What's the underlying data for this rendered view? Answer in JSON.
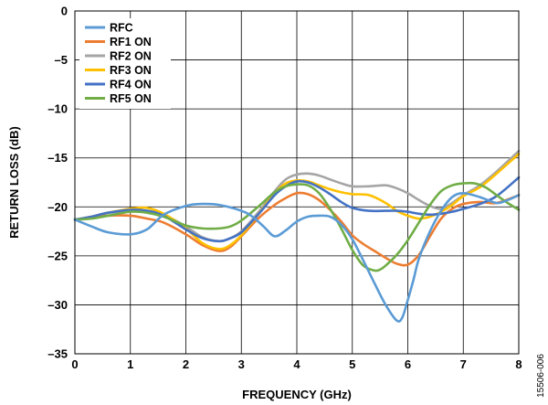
{
  "chart_data": {
    "type": "line",
    "xlabel": "FREQUENCY (GHz)",
    "ylabel": "RETURN LOSS (dB)",
    "xlim": [
      0,
      8
    ],
    "ylim": [
      -35,
      0
    ],
    "xticks": [
      0,
      1,
      2,
      3,
      4,
      5,
      6,
      7,
      8
    ],
    "yticks": [
      0,
      -5,
      -10,
      -15,
      -20,
      -25,
      -30,
      -35
    ],
    "xtick_labels": [
      "0",
      "1",
      "2",
      "3",
      "4",
      "5",
      "6",
      "7",
      "8"
    ],
    "ytick_labels": [
      "0",
      "–5",
      "–10",
      "–15",
      "–20",
      "–25",
      "–30",
      "–35"
    ],
    "grid": true,
    "legend_position": "top-left",
    "figure_id": "15506-006",
    "series": [
      {
        "name": "RFC",
        "color": "#5b9bd5",
        "x": [
          0,
          0.3,
          0.6,
          1.0,
          1.3,
          1.6,
          2.0,
          2.3,
          2.6,
          3.0,
          3.2,
          3.4,
          3.6,
          3.8,
          4.0,
          4.2,
          4.4,
          4.6,
          4.8,
          5.0,
          5.2,
          5.4,
          5.6,
          5.8,
          5.9,
          6.0,
          6.1,
          6.2,
          6.4,
          6.6,
          6.8,
          7.0,
          7.3,
          7.6,
          7.8,
          8.0
        ],
        "y": [
          -21.3,
          -22.0,
          -22.6,
          -22.8,
          -22.3,
          -20.8,
          -19.9,
          -19.7,
          -19.8,
          -20.4,
          -21.0,
          -22.0,
          -23.0,
          -22.4,
          -21.5,
          -21.0,
          -20.9,
          -21.0,
          -21.8,
          -23.3,
          -25.5,
          -27.8,
          -30.0,
          -31.6,
          -31.3,
          -29.5,
          -27.5,
          -25.3,
          -22.5,
          -20.4,
          -19.0,
          -18.6,
          -19.0,
          -19.6,
          -19.3,
          -18.8
        ]
      },
      {
        "name": "RF1 ON",
        "color": "#ed7d31",
        "x": [
          0,
          0.3,
          0.6,
          1.0,
          1.3,
          1.6,
          2.0,
          2.3,
          2.6,
          2.8,
          3.0,
          3.3,
          3.6,
          3.8,
          4.0,
          4.2,
          4.4,
          4.6,
          4.8,
          5.0,
          5.2,
          5.4,
          5.6,
          5.8,
          6.0,
          6.2,
          6.4,
          6.6,
          6.8,
          7.0,
          7.3,
          7.6,
          8.0
        ],
        "y": [
          -21.3,
          -21.1,
          -20.9,
          -20.9,
          -21.2,
          -21.6,
          -22.8,
          -23.9,
          -24.5,
          -24.1,
          -23.0,
          -21.2,
          -19.8,
          -19.1,
          -18.6,
          -18.7,
          -19.3,
          -20.3,
          -21.5,
          -22.9,
          -23.8,
          -24.5,
          -25.2,
          -25.8,
          -25.9,
          -24.9,
          -23.0,
          -21.2,
          -20.2,
          -19.7,
          -19.5,
          -19.6,
          -18.8
        ]
      },
      {
        "name": "RF2 ON",
        "color": "#a5a5a5",
        "x": [
          0,
          0.3,
          0.6,
          1.0,
          1.3,
          1.6,
          2.0,
          2.3,
          2.6,
          2.8,
          3.0,
          3.3,
          3.6,
          3.8,
          4.0,
          4.2,
          4.4,
          4.6,
          4.8,
          5.0,
          5.3,
          5.6,
          5.8,
          6.0,
          6.2,
          6.4,
          6.6,
          6.8,
          7.0,
          7.3,
          7.6,
          8.0
        ],
        "y": [
          -21.3,
          -21.0,
          -20.6,
          -20.4,
          -20.4,
          -20.8,
          -22.0,
          -23.1,
          -23.5,
          -23.2,
          -22.5,
          -20.6,
          -18.4,
          -17.2,
          -16.7,
          -16.6,
          -16.8,
          -17.2,
          -17.6,
          -17.9,
          -17.9,
          -17.8,
          -18.1,
          -18.6,
          -19.3,
          -19.9,
          -20.2,
          -19.6,
          -18.8,
          -17.8,
          -16.4,
          -14.3
        ]
      },
      {
        "name": "RF3 ON",
        "color": "#ffc000",
        "x": [
          0,
          0.3,
          0.6,
          1.0,
          1.3,
          1.6,
          2.0,
          2.3,
          2.6,
          2.8,
          3.0,
          3.3,
          3.6,
          3.8,
          4.0,
          4.2,
          4.4,
          4.6,
          4.8,
          5.0,
          5.3,
          5.6,
          5.8,
          6.0,
          6.2,
          6.4,
          6.6,
          6.8,
          7.0,
          7.3,
          7.6,
          8.0
        ],
        "y": [
          -21.3,
          -21.0,
          -20.6,
          -20.2,
          -20.1,
          -20.7,
          -22.2,
          -23.7,
          -24.3,
          -23.9,
          -22.9,
          -20.8,
          -18.6,
          -17.6,
          -17.3,
          -17.4,
          -17.8,
          -18.2,
          -18.5,
          -18.7,
          -18.8,
          -19.6,
          -20.4,
          -20.9,
          -21.2,
          -21.0,
          -20.5,
          -19.8,
          -18.9,
          -18.0,
          -16.6,
          -14.6
        ]
      },
      {
        "name": "RF4 ON",
        "color": "#4472c4",
        "x": [
          0,
          0.3,
          0.6,
          1.0,
          1.3,
          1.6,
          2.0,
          2.3,
          2.6,
          2.8,
          3.0,
          3.3,
          3.6,
          3.8,
          4.0,
          4.2,
          4.4,
          4.6,
          4.8,
          5.0,
          5.3,
          5.6,
          5.8,
          6.0,
          6.2,
          6.4,
          6.6,
          6.8,
          7.0,
          7.3,
          7.6,
          8.0
        ],
        "y": [
          -21.3,
          -21.0,
          -20.6,
          -20.3,
          -20.4,
          -20.9,
          -22.3,
          -23.2,
          -23.5,
          -23.2,
          -22.6,
          -20.8,
          -18.8,
          -17.9,
          -17.4,
          -17.5,
          -18.0,
          -18.7,
          -19.5,
          -20.1,
          -20.4,
          -20.4,
          -20.4,
          -20.5,
          -20.7,
          -20.8,
          -20.7,
          -20.5,
          -20.2,
          -19.7,
          -18.9,
          -17.0
        ]
      },
      {
        "name": "RF5 ON",
        "color": "#70ad47",
        "x": [
          0,
          0.3,
          0.6,
          1.0,
          1.3,
          1.6,
          2.0,
          2.3,
          2.6,
          2.8,
          3.0,
          3.3,
          3.6,
          3.8,
          4.0,
          4.2,
          4.4,
          4.6,
          4.8,
          5.0,
          5.2,
          5.4,
          5.5,
          5.6,
          5.8,
          6.0,
          6.2,
          6.4,
          6.6,
          6.8,
          7.0,
          7.2,
          7.4,
          7.6,
          7.8,
          8.0
        ],
        "y": [
          -21.3,
          -21.2,
          -20.9,
          -20.5,
          -20.6,
          -21.0,
          -21.9,
          -22.2,
          -22.2,
          -22.0,
          -21.4,
          -20.0,
          -18.5,
          -17.9,
          -17.7,
          -17.8,
          -18.6,
          -20.2,
          -22.2,
          -24.4,
          -26.0,
          -26.5,
          -26.4,
          -26.0,
          -24.9,
          -23.4,
          -21.6,
          -19.8,
          -18.4,
          -17.8,
          -17.6,
          -17.6,
          -18.0,
          -18.8,
          -19.6,
          -20.3
        ]
      }
    ]
  }
}
